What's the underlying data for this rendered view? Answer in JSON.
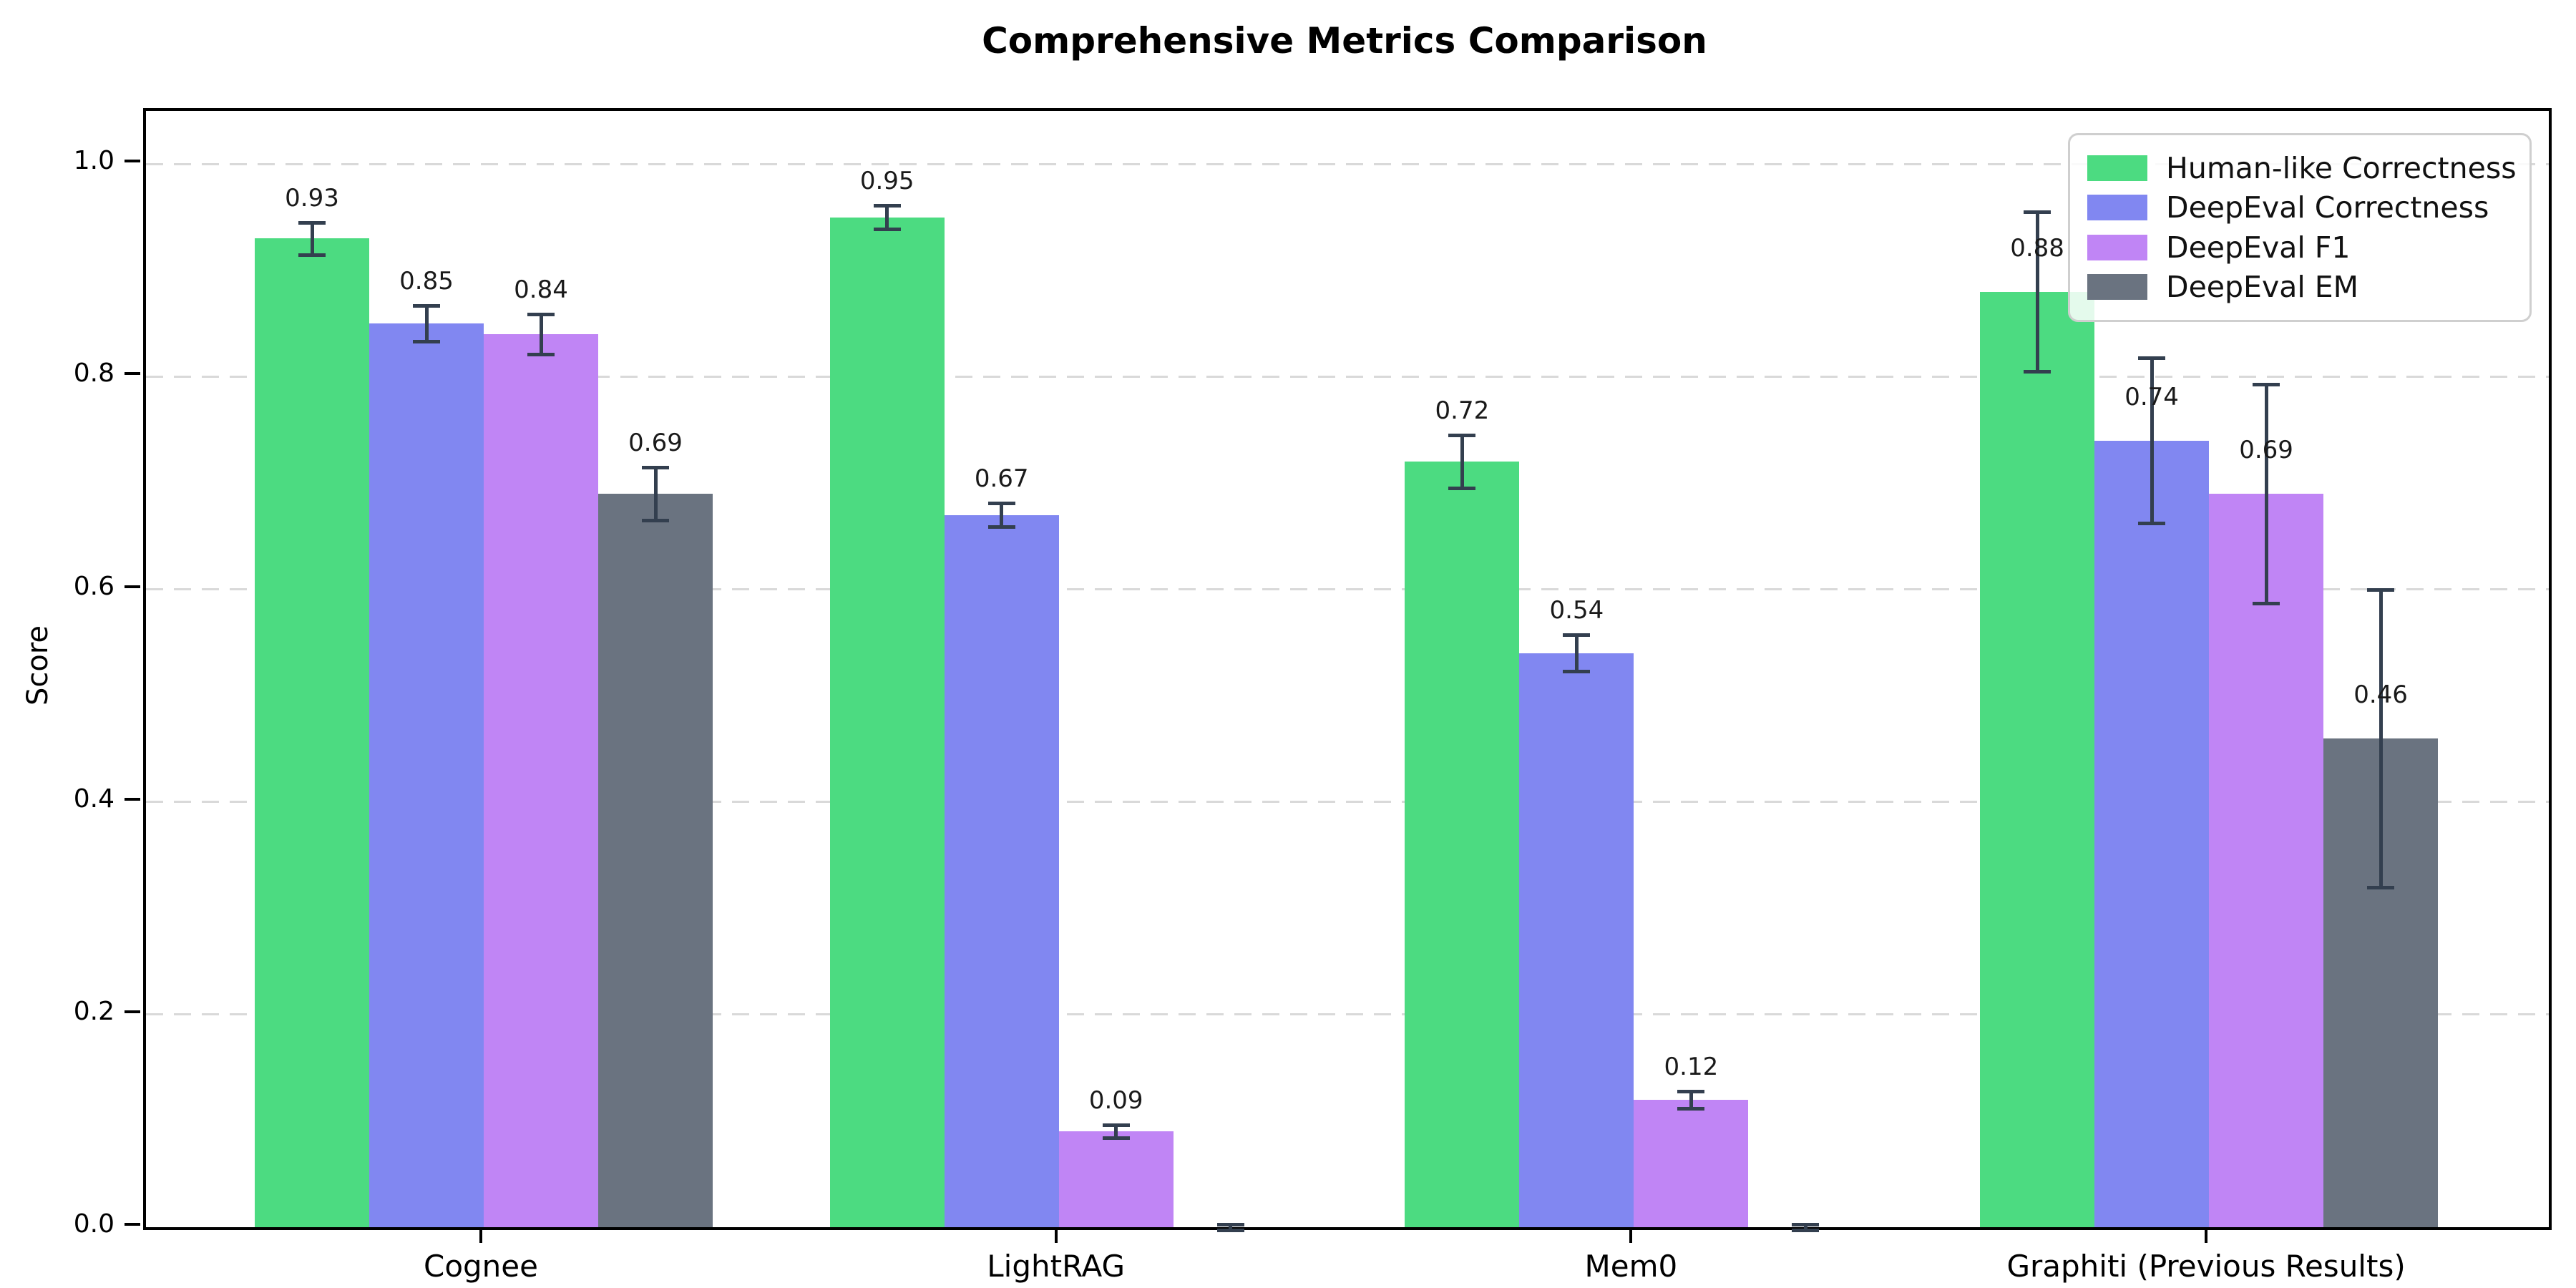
{
  "chart_data": {
    "type": "bar",
    "title": "Comprehensive Metrics Comparison",
    "ylabel": "Score",
    "xlabel": "",
    "categories": [
      "Cognee",
      "LightRAG",
      "Mem0",
      "Graphiti (Previous Results)"
    ],
    "series": [
      {
        "name": "Human-like Correctness",
        "color": "#4cdb81",
        "values": [
          0.93,
          0.95,
          0.72,
          0.88
        ],
        "errors": [
          0.015,
          0.011,
          0.025,
          0.075
        ],
        "labels": [
          "0.93",
          "0.95",
          "0.72",
          "0.88"
        ]
      },
      {
        "name": "DeepEval Correctness",
        "color": "#8187f1",
        "values": [
          0.85,
          0.67,
          0.54,
          0.74
        ],
        "errors": [
          0.017,
          0.011,
          0.017,
          0.078
        ],
        "labels": [
          "0.85",
          "0.67",
          "0.54",
          "0.74"
        ]
      },
      {
        "name": "DeepEval F1",
        "color": "#c085f5",
        "values": [
          0.84,
          0.09,
          0.12,
          0.69
        ],
        "errors": [
          0.019,
          0.006,
          0.008,
          0.103
        ],
        "labels": [
          "0.84",
          "0.09",
          "0.12",
          "0.69"
        ]
      },
      {
        "name": "DeepEval EM",
        "color": "#6a7380",
        "values": [
          0.69,
          0.0,
          0.0,
          0.46
        ],
        "errors": [
          0.025,
          0.003,
          0.003,
          0.14
        ],
        "labels": [
          "0.69",
          "",
          "",
          "0.46"
        ]
      }
    ],
    "yticks": [
      "0.0",
      "0.2",
      "0.4",
      "0.6",
      "0.8",
      "1.0"
    ],
    "ylim": [
      0,
      1.05
    ],
    "grid": "horizontal-dashed",
    "gridline_color": "#d9d9d9",
    "error_bar_color": "#333f4f",
    "legend_position": "upper-right",
    "label_above_error_by_category": [
      true,
      true,
      true,
      false
    ]
  }
}
